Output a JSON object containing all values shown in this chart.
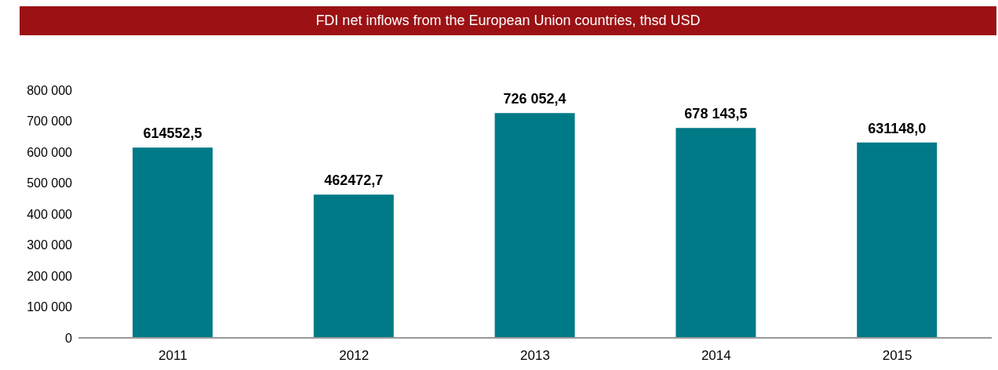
{
  "chart_data": {
    "type": "bar",
    "title": "FDI net inflows from the European Union countries, thsd USD",
    "categories": [
      "2011",
      "2012",
      "2013",
      "2014",
      "2015"
    ],
    "values": [
      614552.5,
      462472.7,
      726052.4,
      678143.5,
      631148.0
    ],
    "value_labels": [
      "614552,5",
      "462472,7",
      "726 052,4",
      "678 143,5",
      "631148,0"
    ],
    "color": "#007a87",
    "ylim": [
      0,
      800000
    ],
    "yticks": [
      {
        "value": 0,
        "label": "0"
      },
      {
        "value": 100000,
        "label": "100 000"
      },
      {
        "value": 200000,
        "label": "200 000"
      },
      {
        "value": 300000,
        "label": "300 000"
      },
      {
        "value": 400000,
        "label": "400 000"
      },
      {
        "value": 500000,
        "label": "500 000"
      },
      {
        "value": 600000,
        "label": "600 000"
      },
      {
        "value": 700000,
        "label": "700 000"
      },
      {
        "value": 800000,
        "label": "800 000"
      }
    ]
  }
}
